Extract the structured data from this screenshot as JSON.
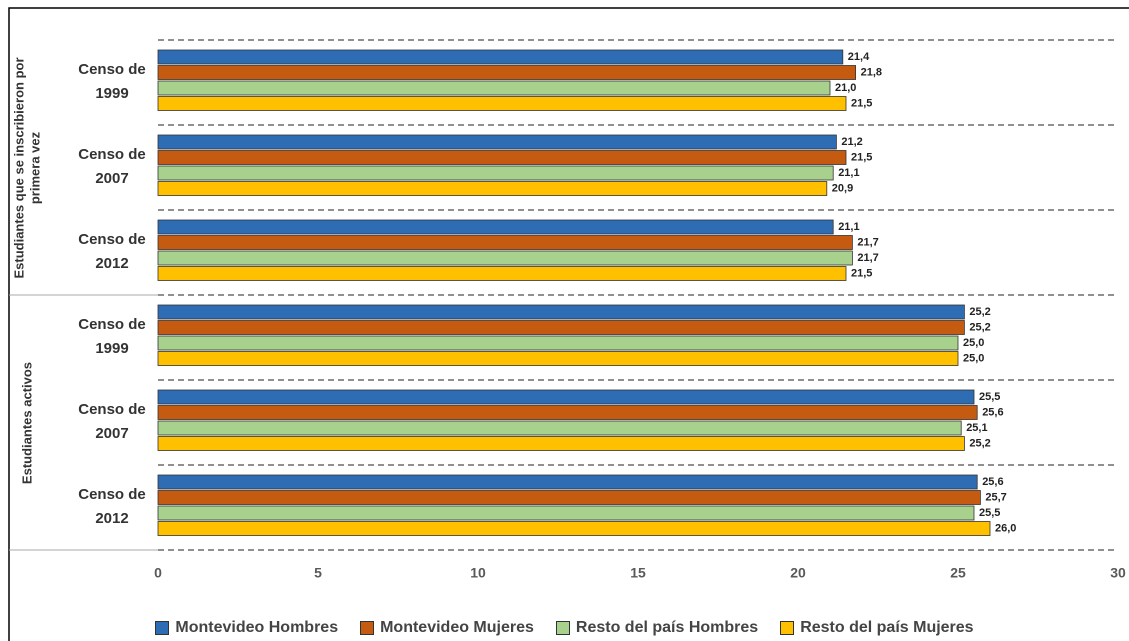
{
  "chart_data": {
    "type": "bar",
    "orientation": "horizontal",
    "groups": [
      {
        "label": "Estudiantes que se inscribieron por primera vez",
        "categories": [
          "Censo de 1999",
          "Censo de 2007",
          "Censo de 2012"
        ]
      },
      {
        "label": "Estudiantes activos",
        "categories": [
          "Censo de 1999",
          "Censo de 2007",
          "Censo de 2012"
        ]
      }
    ],
    "series": [
      {
        "name": "Montevideo Hombres",
        "color": "#2e6db4",
        "values": [
          21.4,
          21.2,
          21.1,
          25.2,
          25.5,
          25.6
        ],
        "value_labels": [
          "21,4",
          "21,2",
          "21,1",
          "25,2",
          "25,5",
          "25,6"
        ]
      },
      {
        "name": "Montevideo Mujeres",
        "color": "#c55a11",
        "values": [
          21.8,
          21.5,
          21.7,
          25.2,
          25.6,
          25.7
        ],
        "value_labels": [
          "21,8",
          "21,5",
          "21,7",
          "25,2",
          "25,6",
          "25,7"
        ]
      },
      {
        "name": "Resto del país Hombres",
        "color": "#a9d18e",
        "values": [
          21.0,
          21.1,
          21.7,
          25.0,
          25.1,
          25.5
        ],
        "value_labels": [
          "21,0",
          "21,1",
          "21,7",
          "25,0",
          "25,1",
          "25,5"
        ]
      },
      {
        "name": "Resto del país Mujeres",
        "color": "#ffc000",
        "values": [
          21.5,
          20.9,
          21.5,
          25.0,
          25.2,
          26.0
        ],
        "value_labels": [
          "21,5",
          "20,9",
          "21,5",
          "25,0",
          "25,2",
          "26,0"
        ]
      }
    ],
    "xlim": [
      0,
      30
    ],
    "xticks": [
      0,
      5,
      10,
      15,
      20,
      25,
      30
    ],
    "legend": "bottom"
  }
}
